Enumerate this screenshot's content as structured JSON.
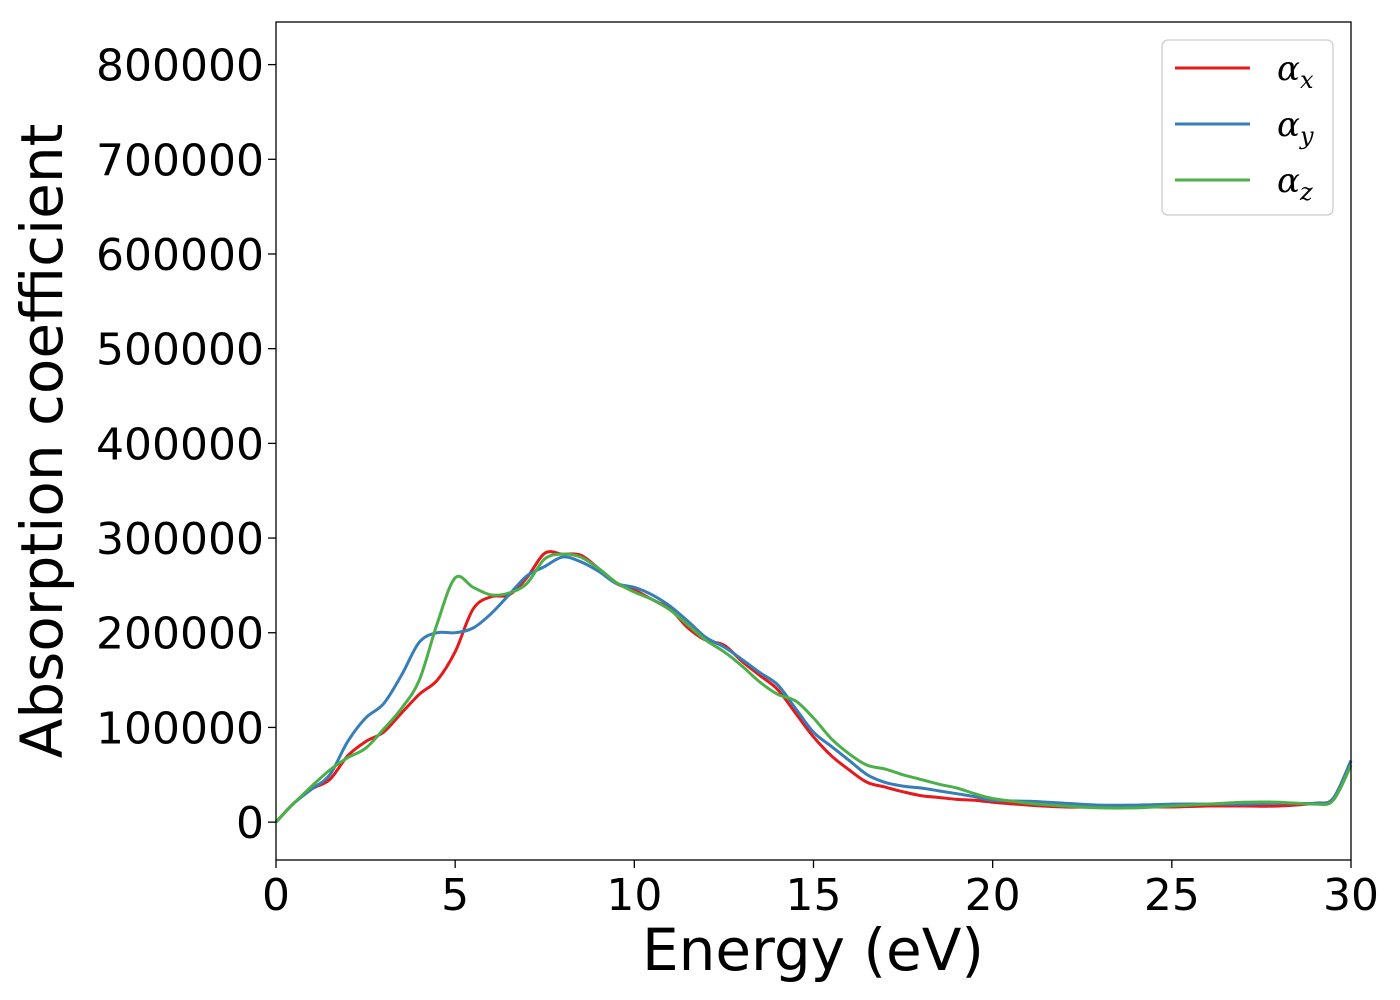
{
  "chart_data": {
    "type": "line",
    "xlabel": "Energy (eV)",
    "ylabel": "Absorption coefficient",
    "xlim": [
      0,
      30
    ],
    "ylim": [
      -40000,
      845000
    ],
    "xticks": [
      0,
      5,
      10,
      15,
      20,
      25,
      30
    ],
    "xtick_labels": [
      "0",
      "5",
      "10",
      "15",
      "20",
      "25",
      "30"
    ],
    "yticks": [
      0,
      100000,
      200000,
      300000,
      400000,
      500000,
      600000,
      700000,
      800000
    ],
    "ytick_labels": [
      "0",
      "100000",
      "200000",
      "300000",
      "400000",
      "500000",
      "600000",
      "700000",
      "800000"
    ],
    "grid": false,
    "legend_position": "top-right",
    "x": [
      0,
      0.5,
      1,
      1.5,
      2,
      2.5,
      3,
      3.5,
      4,
      4.5,
      5,
      5.5,
      6,
      6.5,
      7,
      7.5,
      8,
      8.5,
      9,
      9.5,
      10,
      10.5,
      11,
      11.5,
      12,
      12.5,
      13,
      13.5,
      14,
      14.5,
      15,
      15.5,
      16,
      16.5,
      17,
      17.5,
      18,
      18.5,
      19,
      19.5,
      20,
      21,
      22,
      23,
      24,
      25,
      26,
      27,
      28,
      29,
      29.5,
      30
    ],
    "series": [
      {
        "name": "α",
        "subscript": "x",
        "color": "#e41a1c",
        "values": [
          0,
          20000,
          35000,
          45000,
          70000,
          85000,
          95000,
          115000,
          135000,
          150000,
          180000,
          225000,
          238000,
          240000,
          258000,
          284000,
          283000,
          282000,
          268000,
          252000,
          245000,
          235000,
          225000,
          205000,
          192000,
          187000,
          170000,
          155000,
          140000,
          115000,
          90000,
          70000,
          55000,
          42000,
          37000,
          32000,
          28000,
          26000,
          24000,
          23000,
          21000,
          18000,
          16000,
          16000,
          16000,
          16000,
          17000,
          17000,
          17000,
          20000,
          25000,
          65000
        ]
      },
      {
        "name": "α",
        "subscript": "y",
        "color": "#377eb8",
        "values": [
          0,
          20000,
          35000,
          50000,
          85000,
          110000,
          125000,
          155000,
          190000,
          200000,
          200000,
          205000,
          220000,
          240000,
          260000,
          270000,
          280000,
          275000,
          265000,
          252000,
          248000,
          240000,
          228000,
          212000,
          195000,
          185000,
          172000,
          158000,
          145000,
          120000,
          95000,
          80000,
          65000,
          50000,
          42000,
          38000,
          36000,
          33000,
          30000,
          27000,
          23000,
          22000,
          20000,
          18000,
          18000,
          19000,
          19000,
          19000,
          20000,
          20000,
          25000,
          65000
        ]
      },
      {
        "name": "α",
        "subscript": "z",
        "color": "#4daf4a",
        "values": [
          0,
          20000,
          38000,
          55000,
          68000,
          78000,
          98000,
          120000,
          150000,
          210000,
          258000,
          248000,
          240000,
          242000,
          252000,
          278000,
          283000,
          280000,
          268000,
          253000,
          243000,
          235000,
          224000,
          208000,
          192000,
          180000,
          165000,
          148000,
          135000,
          128000,
          110000,
          88000,
          72000,
          60000,
          56000,
          50000,
          45000,
          40000,
          36000,
          30000,
          25000,
          20000,
          17000,
          15000,
          15000,
          17000,
          19000,
          21000,
          21000,
          19000,
          23000,
          60000
        ]
      }
    ]
  }
}
